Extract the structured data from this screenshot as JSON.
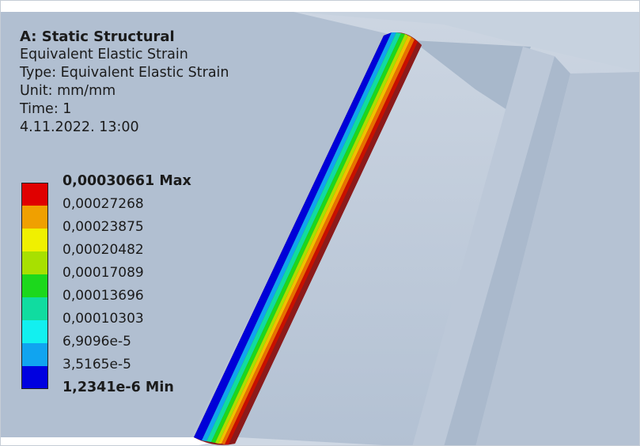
{
  "info": {
    "title": "A: Static Structural",
    "result": "Equivalent Elastic Strain",
    "type": "Type: Equivalent Elastic Strain",
    "unit": "Unit: mm/mm",
    "time": "Time: 1",
    "date": "4.11.2022. 13:00"
  },
  "legend": {
    "labels": [
      "0,00030661 Max",
      "0,00027268",
      "0,00023875",
      "0,00020482",
      "0,00017089",
      "0,00013696",
      "0,00010303",
      "6,9096e-5",
      "3,5165e-5",
      "1,2341e-6 Min"
    ],
    "colors": [
      "#e00000",
      "#f0a000",
      "#f0f000",
      "#a8e000",
      "#1cd81c",
      "#10dca0",
      "#12f0f0",
      "#10a4f0",
      "#0000e0"
    ]
  },
  "colors": {
    "background": "#ffffff",
    "model_fill": "#b6c4d6",
    "model_light": "#c4d0de",
    "model_dark": "#98a9bd"
  }
}
